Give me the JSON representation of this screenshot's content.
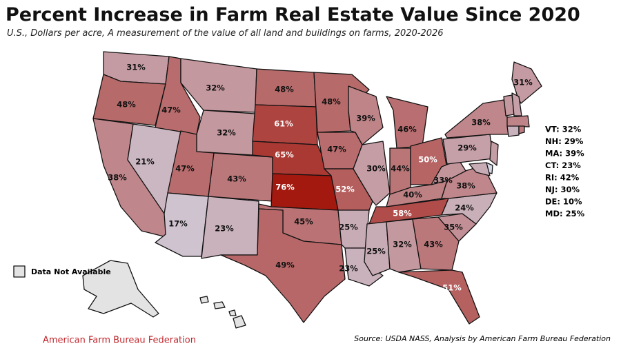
{
  "chart_data": {
    "type": "choropleth",
    "title": "Percent Increase in Farm Real Estate Value Since 2020",
    "subtitle": "U.S., Dollars per acre, A measurement of the value of all land and buildings on farms, 2020-2026",
    "values": [
      31,
      48,
      38,
      21,
      47,
      32,
      32,
      47,
      17,
      43,
      23,
      48,
      61,
      65,
      76,
      45,
      49,
      48,
      47,
      52,
      25,
      23,
      39,
      30,
      46,
      44,
      50,
      40,
      58,
      25,
      32,
      43,
      51,
      35,
      24,
      38,
      33,
      29,
      38,
      31
    ],
    "value_labels": [
      "31%",
      "48%",
      "38%",
      "21%",
      "47%",
      "32%",
      "32%",
      "47%",
      "17%",
      "43%",
      "23%",
      "48%",
      "61%",
      "65%",
      "76%",
      "45%",
      "49%",
      "48%",
      "47%",
      "52%",
      "25%",
      "23%",
      "39%",
      "30%",
      "46%",
      "44%",
      "50%",
      "40%",
      "58%",
      "25%",
      "32%",
      "43%",
      "51%",
      "35%",
      "24%",
      "38%",
      "33%",
      "29%",
      "38%",
      "31%"
    ],
    "small_labels": [
      "VT: 32%",
      "NH: 29%",
      "MA: 39%",
      "CT: 23%",
      "RI: 42%",
      "NJ: 30%",
      "DE: 10%",
      "MD: 25%"
    ],
    "small_values": [
      32,
      29,
      39,
      23,
      42,
      30,
      10,
      25
    ],
    "colors": {
      "low": "#d3d7e6",
      "high": "#a3190f",
      "na": "#e3e3e3"
    },
    "legend_label": "Data Not Available",
    "organization": "American Farm Bureau Federation",
    "source": "Source: USDA NASS, Analysis by American Farm Bureau Federation"
  }
}
